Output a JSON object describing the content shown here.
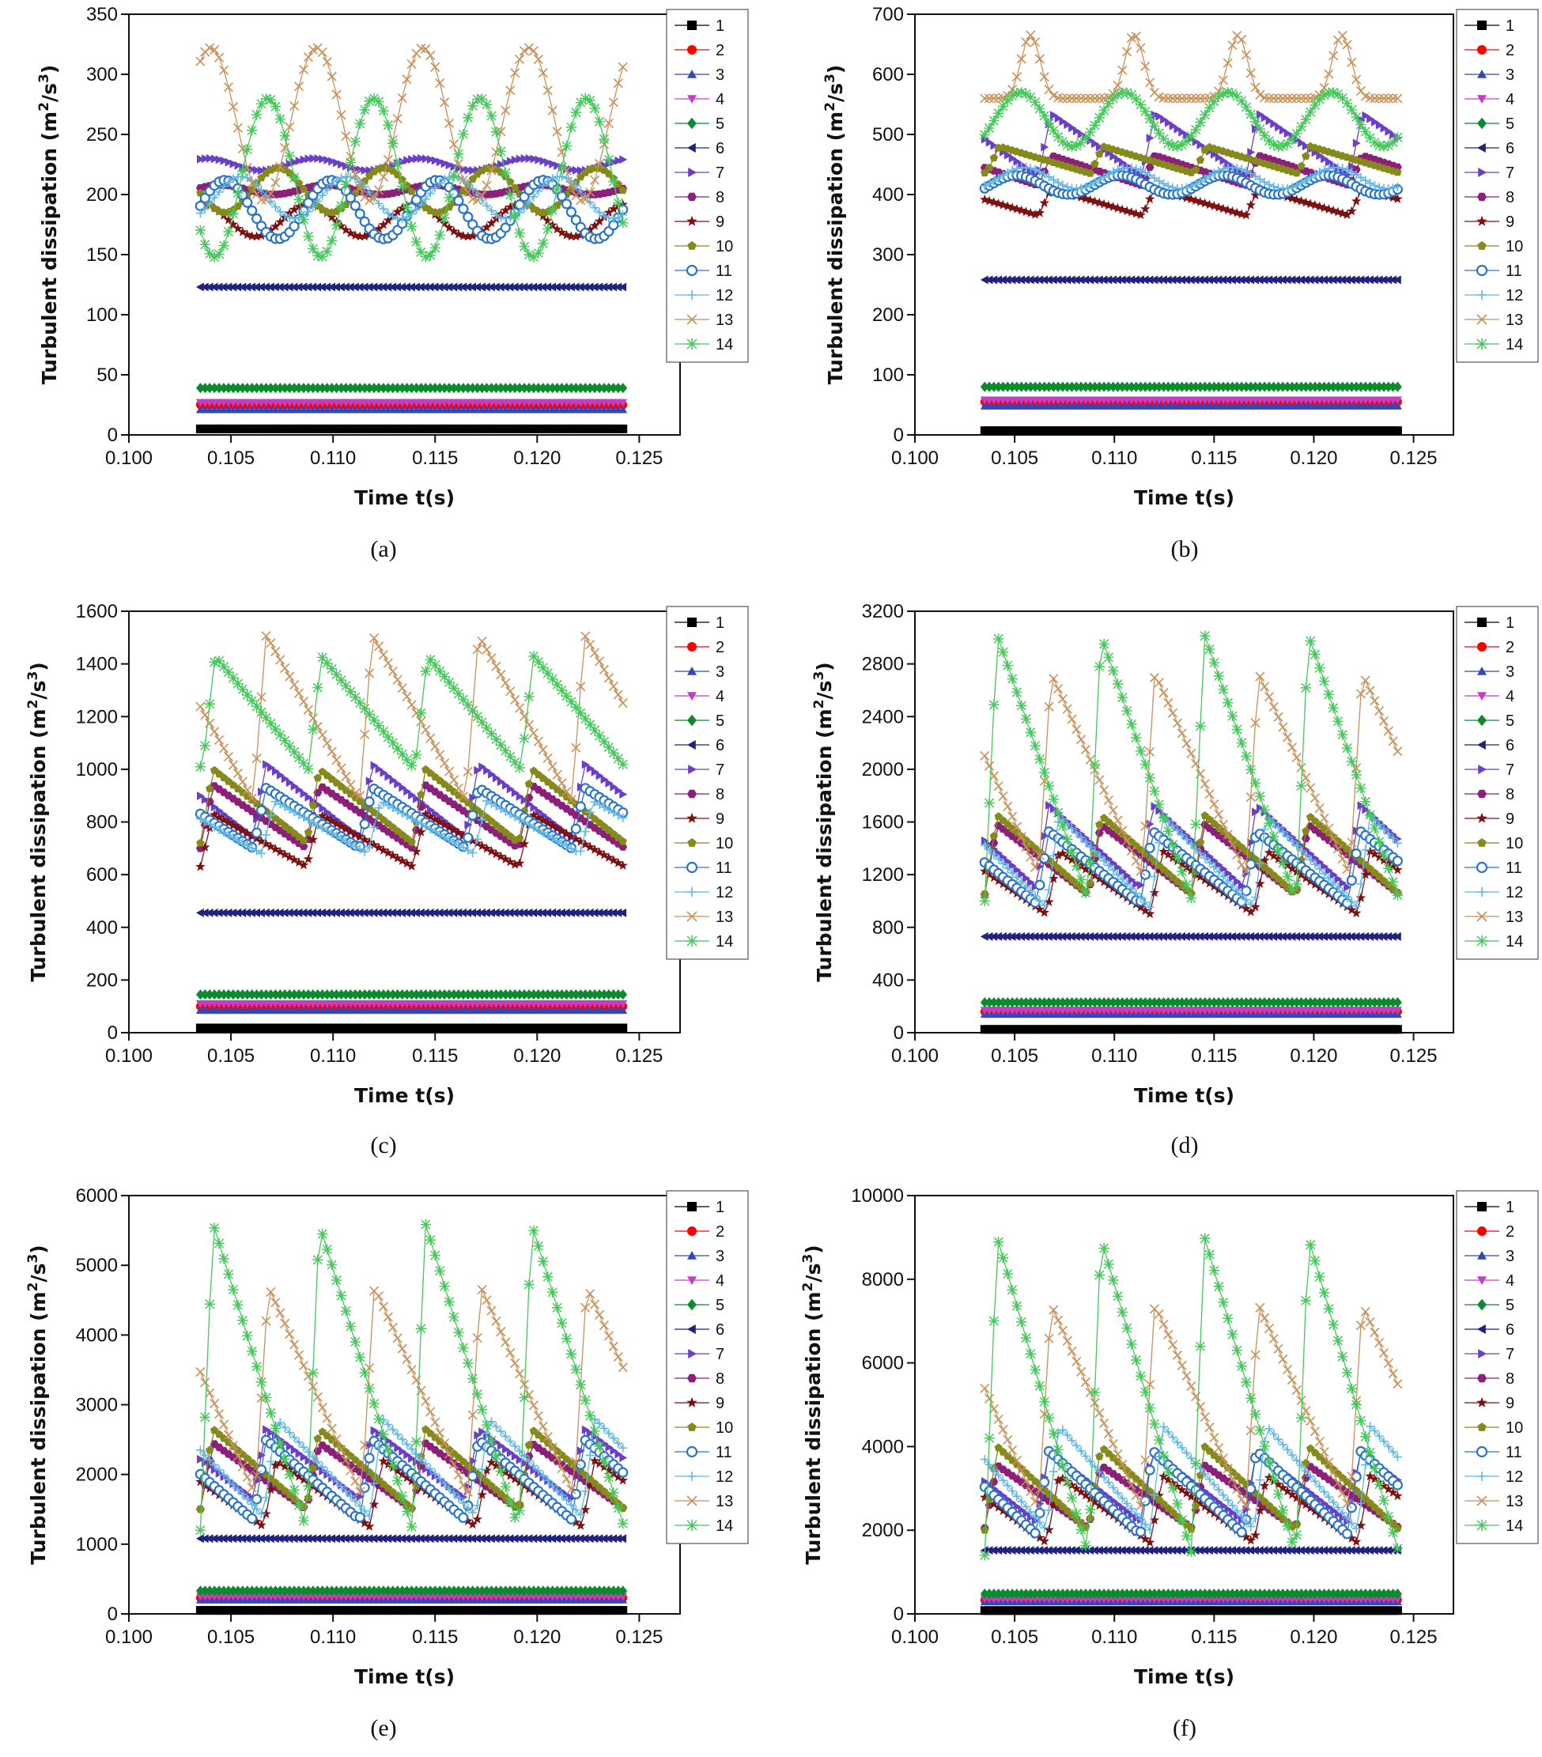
{
  "figure": {
    "panel_labels": [
      "(a)",
      "(b)",
      "(c)",
      "(d)",
      "(e)",
      "(f)"
    ]
  },
  "series_styles": [
    {
      "name": "1",
      "color": "#000000",
      "marker": "square"
    },
    {
      "name": "2",
      "color": "#ff0000",
      "marker": "circle"
    },
    {
      "name": "3",
      "color": "#3348b8",
      "marker": "triangle-up"
    },
    {
      "name": "4",
      "color": "#c43ec4",
      "marker": "triangle-down"
    },
    {
      "name": "5",
      "color": "#0b8a2e",
      "marker": "diamond"
    },
    {
      "name": "6",
      "color": "#1f237d",
      "marker": "triangle-left"
    },
    {
      "name": "7",
      "color": "#6a3fc7",
      "marker": "triangle-right"
    },
    {
      "name": "8",
      "color": "#8b1f7a",
      "marker": "hexagon"
    },
    {
      "name": "9",
      "color": "#7d1010",
      "marker": "star"
    },
    {
      "name": "10",
      "color": "#858a1a",
      "marker": "pentagon"
    },
    {
      "name": "11",
      "color": "#2a74c7",
      "marker": "circle-open"
    },
    {
      "name": "12",
      "color": "#62b8e3",
      "marker": "plus"
    },
    {
      "name": "13",
      "color": "#c8915a",
      "marker": "x"
    },
    {
      "name": "14",
      "color": "#46c85b",
      "marker": "asterisk"
    }
  ],
  "chart_data": [
    {
      "type": "line",
      "panel": "(a)",
      "xlabel": "Time t(s)",
      "ylabel": "Turbulent dissipation (m2/s3)",
      "xlim": [
        0.1,
        0.127
      ],
      "ylim": [
        0,
        350
      ],
      "xticks": [
        "0.100",
        "0.105",
        "0.110",
        "0.115",
        "0.120",
        "0.125"
      ],
      "yticks": [
        "0",
        "50",
        "100",
        "150",
        "200",
        "250",
        "300",
        "350"
      ],
      "legend": "right",
      "time_range": [
        0.1035,
        0.1242
      ],
      "period": 0.0052,
      "series": [
        {
          "name": "1",
          "min": 5,
          "max": 5,
          "phase": 0,
          "shape": "flat"
        },
        {
          "name": "2",
          "min": 25,
          "max": 25,
          "phase": 0,
          "shape": "flat"
        },
        {
          "name": "3",
          "min": 21,
          "max": 21,
          "phase": 0,
          "shape": "flat"
        },
        {
          "name": "4",
          "min": 27,
          "max": 27,
          "phase": 0,
          "shape": "flat"
        },
        {
          "name": "5",
          "min": 39,
          "max": 39,
          "phase": 0,
          "shape": "flat"
        },
        {
          "name": "6",
          "min": 123,
          "max": 123,
          "phase": 0,
          "shape": "flat"
        },
        {
          "name": "7",
          "min": 220,
          "max": 230,
          "phase": 0.0004,
          "shape": "sine"
        },
        {
          "name": "8",
          "min": 200,
          "max": 208,
          "phase": 0.001,
          "shape": "sine"
        },
        {
          "name": "9",
          "min": 165,
          "max": 192,
          "phase": 0.0001,
          "shape": "sine"
        },
        {
          "name": "10",
          "min": 185,
          "max": 222,
          "phase": 0.0038,
          "shape": "sine"
        },
        {
          "name": "11",
          "min": 163,
          "max": 212,
          "phase": 0.0012,
          "shape": "sine"
        },
        {
          "name": "12",
          "min": 180,
          "max": 215,
          "phase": 0.002,
          "shape": "sine"
        },
        {
          "name": "13",
          "min": 195,
          "max": 322,
          "phase": 0.0005,
          "shape": "sine"
        },
        {
          "name": "14",
          "min": 148,
          "max": 280,
          "phase": 0.0033,
          "shape": "sine"
        }
      ]
    },
    {
      "type": "line",
      "panel": "(b)",
      "xlabel": "Time t(s)",
      "ylabel": "Turbulent dissipation (m2/s3)",
      "xlim": [
        0.1,
        0.127
      ],
      "ylim": [
        0,
        700
      ],
      "xticks": [
        "0.100",
        "0.105",
        "0.110",
        "0.115",
        "0.120",
        "0.125"
      ],
      "yticks": [
        "0",
        "100",
        "200",
        "300",
        "400",
        "500",
        "600",
        "700"
      ],
      "legend": "right",
      "time_range": [
        0.1035,
        0.1242
      ],
      "period": 0.0052,
      "series": [
        {
          "name": "1",
          "min": 7,
          "max": 7,
          "phase": 0,
          "shape": "flat"
        },
        {
          "name": "2",
          "min": 55,
          "max": 55,
          "phase": 0,
          "shape": "flat"
        },
        {
          "name": "3",
          "min": 48,
          "max": 48,
          "phase": 0,
          "shape": "flat"
        },
        {
          "name": "4",
          "min": 58,
          "max": 58,
          "phase": 0,
          "shape": "flat"
        },
        {
          "name": "5",
          "min": 80,
          "max": 80,
          "phase": 0,
          "shape": "flat"
        },
        {
          "name": "6",
          "min": 258,
          "max": 258,
          "phase": 0,
          "shape": "flat"
        },
        {
          "name": "7",
          "min": 430,
          "max": 535,
          "phase": 0.0027,
          "shape": "saw"
        },
        {
          "name": "8",
          "min": 415,
          "max": 465,
          "phase": 0.0027,
          "shape": "saw"
        },
        {
          "name": "9",
          "min": 365,
          "max": 410,
          "phase": 0.0027,
          "shape": "saw"
        },
        {
          "name": "10",
          "min": 435,
          "max": 480,
          "phase": 0.0053,
          "shape": "saw"
        },
        {
          "name": "11",
          "min": 400,
          "max": 432,
          "phase": 0.0016,
          "shape": "sine"
        },
        {
          "name": "12",
          "min": 410,
          "max": 445,
          "phase": 0.002,
          "shape": "sine"
        },
        {
          "name": "13",
          "min": 560,
          "max": 665,
          "phase": 0.0023,
          "shape": "peak"
        },
        {
          "name": "14",
          "min": 480,
          "max": 570,
          "phase": 0.0018,
          "shape": "sine"
        }
      ]
    },
    {
      "type": "line",
      "panel": "(c)",
      "xlabel": "Time t(s)",
      "ylabel": "Turbulent dissipation (m2/s3)",
      "xlim": [
        0.1,
        0.127
      ],
      "ylim": [
        0,
        1600
      ],
      "xticks": [
        "0.100",
        "0.105",
        "0.110",
        "0.115",
        "0.120",
        "0.125"
      ],
      "yticks": [
        "0",
        "200",
        "400",
        "600",
        "800",
        "1000",
        "1200",
        "1400",
        "1600"
      ],
      "legend": "right",
      "time_range": [
        0.1035,
        0.1242
      ],
      "period": 0.0052,
      "series": [
        {
          "name": "1",
          "min": 18,
          "max": 18,
          "phase": 0,
          "shape": "flat"
        },
        {
          "name": "2",
          "min": 100,
          "max": 100,
          "phase": 0,
          "shape": "flat"
        },
        {
          "name": "3",
          "min": 85,
          "max": 85,
          "phase": 0,
          "shape": "flat"
        },
        {
          "name": "4",
          "min": 110,
          "max": 110,
          "phase": 0,
          "shape": "flat"
        },
        {
          "name": "5",
          "min": 145,
          "max": 145,
          "phase": 0,
          "shape": "flat"
        },
        {
          "name": "6",
          "min": 455,
          "max": 455,
          "phase": 0,
          "shape": "flat"
        },
        {
          "name": "7",
          "min": 740,
          "max": 1020,
          "phase": 0.0026,
          "shape": "saw"
        },
        {
          "name": "8",
          "min": 700,
          "max": 940,
          "phase": 0.0052,
          "shape": "saw"
        },
        {
          "name": "9",
          "min": 630,
          "max": 830,
          "phase": 0.0052,
          "shape": "saw"
        },
        {
          "name": "10",
          "min": 720,
          "max": 1000,
          "phase": 0.0052,
          "shape": "saw"
        },
        {
          "name": "11",
          "min": 700,
          "max": 930,
          "phase": 0.0026,
          "shape": "saw"
        },
        {
          "name": "12",
          "min": 680,
          "max": 880,
          "phase": 0.003,
          "shape": "saw"
        },
        {
          "name": "13",
          "min": 880,
          "max": 1510,
          "phase": 0.0026,
          "shape": "saw"
        },
        {
          "name": "14",
          "min": 1000,
          "max": 1430,
          "phase": 0.0053,
          "shape": "saw"
        }
      ]
    },
    {
      "type": "line",
      "panel": "(d)",
      "xlabel": "Time t(s)",
      "ylabel": "Turbulent dissipation (m2/s3)",
      "xlim": [
        0.1,
        0.127
      ],
      "ylim": [
        0,
        3200
      ],
      "xticks": [
        "0.100",
        "0.105",
        "0.110",
        "0.115",
        "0.120",
        "0.125"
      ],
      "yticks": [
        "0",
        "400",
        "800",
        "1200",
        "1600",
        "2000",
        "2400",
        "2800",
        "3200"
      ],
      "legend": "right",
      "time_range": [
        0.1035,
        0.1242
      ],
      "period": 0.0052,
      "series": [
        {
          "name": "1",
          "min": 25,
          "max": 25,
          "phase": 0,
          "shape": "flat"
        },
        {
          "name": "2",
          "min": 160,
          "max": 160,
          "phase": 0,
          "shape": "flat"
        },
        {
          "name": "3",
          "min": 140,
          "max": 140,
          "phase": 0,
          "shape": "flat"
        },
        {
          "name": "4",
          "min": 170,
          "max": 170,
          "phase": 0,
          "shape": "flat"
        },
        {
          "name": "5",
          "min": 230,
          "max": 230,
          "phase": 0,
          "shape": "flat"
        },
        {
          "name": "6",
          "min": 730,
          "max": 730,
          "phase": 0,
          "shape": "flat"
        },
        {
          "name": "7",
          "min": 1100,
          "max": 1730,
          "phase": 0.0026,
          "shape": "saw"
        },
        {
          "name": "8",
          "min": 1050,
          "max": 1580,
          "phase": 0.0052,
          "shape": "saw"
        },
        {
          "name": "9",
          "min": 900,
          "max": 1380,
          "phase": 0.0031,
          "shape": "saw"
        },
        {
          "name": "10",
          "min": 1050,
          "max": 1650,
          "phase": 0.0052,
          "shape": "saw"
        },
        {
          "name": "11",
          "min": 980,
          "max": 1530,
          "phase": 0.0026,
          "shape": "saw"
        },
        {
          "name": "12",
          "min": 950,
          "max": 1650,
          "phase": 0.0031,
          "shape": "saw"
        },
        {
          "name": "13",
          "min": 1200,
          "max": 2730,
          "phase": 0.0027,
          "shape": "saw"
        },
        {
          "name": "14",
          "min": 1000,
          "max": 3020,
          "phase": 0.0052,
          "shape": "saw"
        }
      ]
    },
    {
      "type": "line",
      "panel": "(e)",
      "xlabel": "Time t(s)",
      "ylabel": "Turbulent dissipation (m2/s3)",
      "xlim": [
        0.1,
        0.127
      ],
      "ylim": [
        0,
        6000
      ],
      "xticks": [
        "0.100",
        "0.105",
        "0.110",
        "0.115",
        "0.120",
        "0.125"
      ],
      "yticks": [
        "0",
        "1000",
        "2000",
        "3000",
        "4000",
        "5000",
        "6000"
      ],
      "legend": "right",
      "time_range": [
        0.1035,
        0.1242
      ],
      "period": 0.0052,
      "series": [
        {
          "name": "1",
          "min": 50,
          "max": 50,
          "phase": 0,
          "shape": "flat"
        },
        {
          "name": "2",
          "min": 230,
          "max": 230,
          "phase": 0,
          "shape": "flat"
        },
        {
          "name": "3",
          "min": 200,
          "max": 200,
          "phase": 0,
          "shape": "flat"
        },
        {
          "name": "4",
          "min": 250,
          "max": 250,
          "phase": 0,
          "shape": "flat"
        },
        {
          "name": "5",
          "min": 330,
          "max": 330,
          "phase": 0,
          "shape": "flat"
        },
        {
          "name": "6",
          "min": 1080,
          "max": 1080,
          "phase": 0,
          "shape": "flat"
        },
        {
          "name": "7",
          "min": 1650,
          "max": 2650,
          "phase": 0.0026,
          "shape": "saw"
        },
        {
          "name": "8",
          "min": 1500,
          "max": 2450,
          "phase": 0.0052,
          "shape": "saw"
        },
        {
          "name": "9",
          "min": 1250,
          "max": 2200,
          "phase": 0.0031,
          "shape": "saw"
        },
        {
          "name": "10",
          "min": 1500,
          "max": 2650,
          "phase": 0.0052,
          "shape": "saw"
        },
        {
          "name": "11",
          "min": 1350,
          "max": 2500,
          "phase": 0.0026,
          "shape": "saw"
        },
        {
          "name": "12",
          "min": 1400,
          "max": 2800,
          "phase": 0.0031,
          "shape": "saw"
        },
        {
          "name": "13",
          "min": 1700,
          "max": 4700,
          "phase": 0.0027,
          "shape": "saw"
        },
        {
          "name": "14",
          "min": 1200,
          "max": 5600,
          "phase": 0.0052,
          "shape": "saw"
        }
      ]
    },
    {
      "type": "line",
      "panel": "(f)",
      "xlabel": "Time t(s)",
      "ylabel": "Turbulent dissipation (m2/s3)",
      "xlim": [
        0.1,
        0.127
      ],
      "ylim": [
        0,
        10000
      ],
      "xticks": [
        "0.100",
        "0.105",
        "0.110",
        "0.115",
        "0.120",
        "0.125"
      ],
      "yticks": [
        "0",
        "2000",
        "4000",
        "6000",
        "8000",
        "10000"
      ],
      "legend": "right",
      "time_range": [
        0.1035,
        0.1242
      ],
      "period": 0.0052,
      "series": [
        {
          "name": "1",
          "min": 80,
          "max": 80,
          "phase": 0,
          "shape": "flat"
        },
        {
          "name": "2",
          "min": 330,
          "max": 330,
          "phase": 0,
          "shape": "flat"
        },
        {
          "name": "3",
          "min": 290,
          "max": 290,
          "phase": 0,
          "shape": "flat"
        },
        {
          "name": "4",
          "min": 360,
          "max": 360,
          "phase": 0,
          "shape": "flat"
        },
        {
          "name": "5",
          "min": 480,
          "max": 480,
          "phase": 0,
          "shape": "flat"
        },
        {
          "name": "6",
          "min": 1520,
          "max": 1520,
          "phase": 0,
          "shape": "flat"
        },
        {
          "name": "7",
          "min": 2200,
          "max": 3900,
          "phase": 0.0026,
          "shape": "saw"
        },
        {
          "name": "8",
          "min": 2050,
          "max": 3550,
          "phase": 0.0052,
          "shape": "saw"
        },
        {
          "name": "9",
          "min": 1700,
          "max": 3300,
          "phase": 0.0031,
          "shape": "saw"
        },
        {
          "name": "10",
          "min": 2000,
          "max": 4000,
          "phase": 0.0052,
          "shape": "saw"
        },
        {
          "name": "11",
          "min": 1900,
          "max": 3900,
          "phase": 0.0026,
          "shape": "saw"
        },
        {
          "name": "12",
          "min": 2000,
          "max": 4500,
          "phase": 0.0031,
          "shape": "saw"
        },
        {
          "name": "13",
          "min": 2500,
          "max": 7400,
          "phase": 0.0027,
          "shape": "saw"
        },
        {
          "name": "14",
          "min": 1400,
          "max": 9000,
          "phase": 0.0052,
          "shape": "saw"
        }
      ]
    }
  ]
}
